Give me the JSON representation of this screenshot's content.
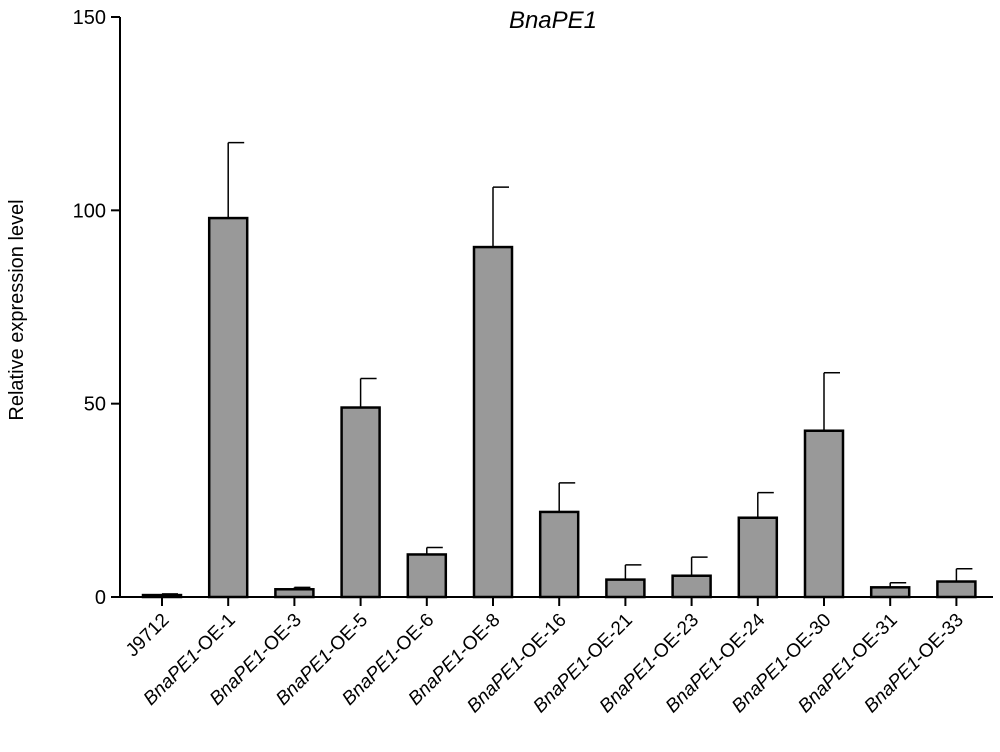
{
  "chart_data": {
    "type": "bar",
    "title": "BnaPE1",
    "xlabel": "",
    "ylabel": "Relative expression level",
    "ylim": [
      0,
      150
    ],
    "yticks": [
      0,
      50,
      100,
      150
    ],
    "categories": [
      {
        "prefix": "",
        "italic": "",
        "suffix": "J9712"
      },
      {
        "prefix": "",
        "italic": "BnaPE1",
        "suffix": "-OE-1"
      },
      {
        "prefix": "",
        "italic": "BnaPE1",
        "suffix": "-OE-3"
      },
      {
        "prefix": "",
        "italic": "BnaPE1",
        "suffix": "-OE-5"
      },
      {
        "prefix": "",
        "italic": "BnaPE1",
        "suffix": "-OE-6"
      },
      {
        "prefix": "",
        "italic": "BnaPE1",
        "suffix": "-OE-8"
      },
      {
        "prefix": "",
        "italic": "BnaPE1",
        "suffix": "-OE-16"
      },
      {
        "prefix": "",
        "italic": "BnaPE1",
        "suffix": "-OE-21"
      },
      {
        "prefix": "",
        "italic": "BnaPE1",
        "suffix": "-OE-23"
      },
      {
        "prefix": "",
        "italic": "BnaPE1",
        "suffix": "-OE-24"
      },
      {
        "prefix": "",
        "italic": "BnaPE1",
        "suffix": "-OE-30"
      },
      {
        "prefix": "",
        "italic": "BnaPE1",
        "suffix": "-OE-31"
      },
      {
        "prefix": "",
        "italic": "BnaPE1",
        "suffix": "-OE-33"
      }
    ],
    "values": [
      0.5,
      98,
      2,
      49,
      11,
      90.5,
      22,
      4.5,
      5.5,
      20.5,
      43,
      2.5,
      4
    ],
    "errors": [
      0.3,
      19.5,
      0.5,
      7.5,
      1.8,
      15.5,
      7.5,
      3.8,
      4.8,
      6.5,
      15,
      1.2,
      3.3
    ],
    "bar_color": "#999999",
    "edge_color": "#000000"
  }
}
